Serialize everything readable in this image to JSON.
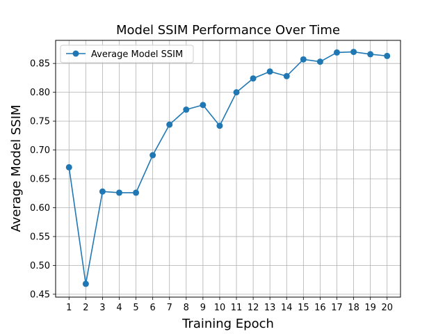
{
  "chart_data": {
    "type": "line",
    "title": "Model SSIM Performance Over Time",
    "xlabel": "Training Epoch",
    "ylabel": "Average Model SSIM",
    "categories": [
      1,
      2,
      3,
      4,
      5,
      6,
      7,
      8,
      9,
      10,
      11,
      12,
      13,
      14,
      15,
      16,
      17,
      18,
      19,
      20
    ],
    "series": [
      {
        "name": "Average Model SSIM",
        "color": "#1f77b4",
        "marker": "circle",
        "values": [
          0.67,
          0.468,
          0.628,
          0.626,
          0.626,
          0.691,
          0.744,
          0.77,
          0.778,
          0.742,
          0.8,
          0.824,
          0.836,
          0.828,
          0.857,
          0.853,
          0.869,
          0.87,
          0.866,
          0.863
        ]
      }
    ],
    "ylim": [
      0.445,
      0.89
    ],
    "yticks": [
      0.45,
      0.5,
      0.55,
      0.6,
      0.65,
      0.7,
      0.75,
      0.8,
      0.85
    ],
    "grid": true,
    "legend_position": "top-left"
  }
}
